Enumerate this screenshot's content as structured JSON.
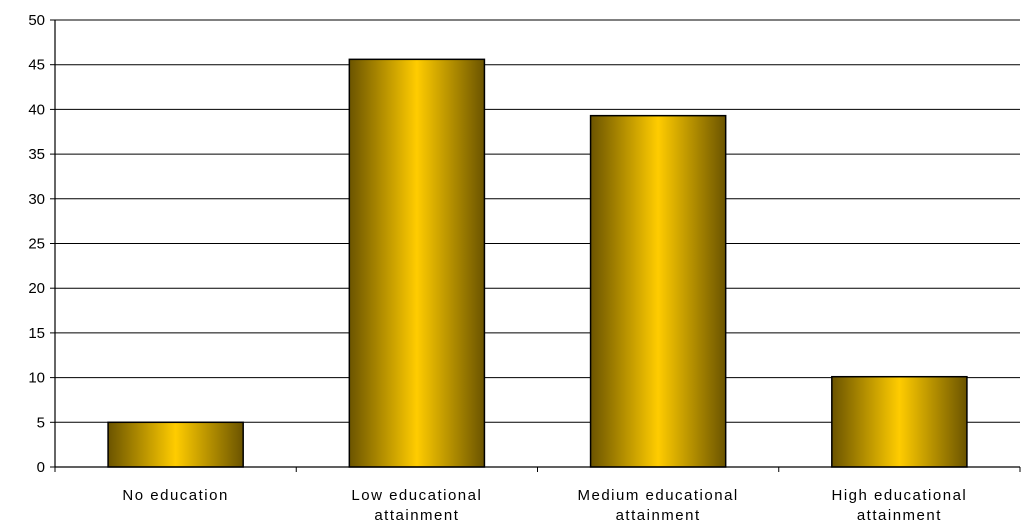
{
  "chart_data": {
    "type": "bar",
    "categories": [
      [
        "No education"
      ],
      [
        "Low educational",
        "attainment"
      ],
      [
        "Medium educational",
        "attainment"
      ],
      [
        "High educational",
        "attainment"
      ]
    ],
    "values": [
      5,
      45.6,
      39.3,
      10.1
    ],
    "ylim": [
      0,
      50
    ],
    "yticks": [
      0,
      5,
      10,
      15,
      20,
      25,
      30,
      35,
      40,
      45,
      50
    ],
    "grid": true,
    "legend": "none",
    "colors": {
      "bar_center": "#FFCC00",
      "bar_edge": "#6B5400",
      "bar_outline": "#000000",
      "grid": "#000000"
    }
  }
}
